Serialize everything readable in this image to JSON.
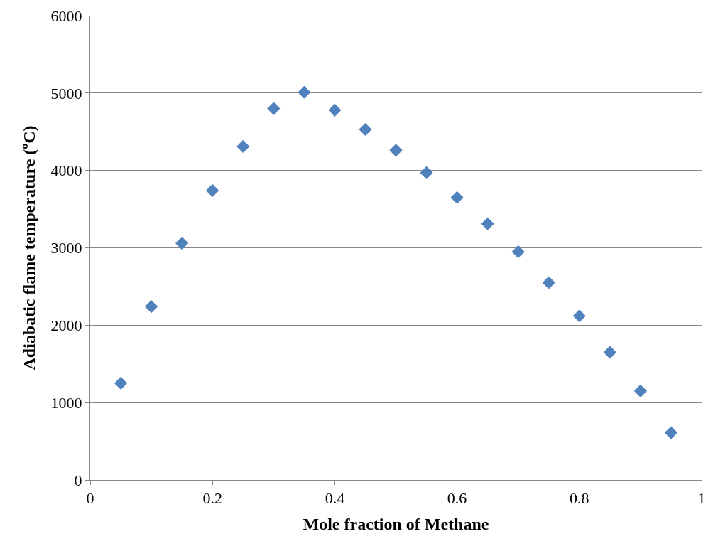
{
  "chart_data": {
    "type": "scatter",
    "xlabel": "Mole fraction of Methane",
    "ylabel": "Adiabatic flame temperature (ºC)",
    "x": [
      0.05,
      0.1,
      0.15,
      0.2,
      0.25,
      0.3,
      0.35,
      0.4,
      0.45,
      0.5,
      0.55,
      0.6,
      0.65,
      0.7,
      0.75,
      0.8,
      0.85,
      0.9,
      0.95
    ],
    "series": [
      {
        "color": "#4f81bd",
        "values": [
          1250,
          2240,
          3060,
          3740,
          4310,
          4800,
          5010,
          4780,
          4530,
          4260,
          3970,
          3650,
          3310,
          2950,
          2550,
          2120,
          1650,
          1150,
          610
        ]
      }
    ],
    "xlim": [
      0,
      1
    ],
    "xticks": [
      0,
      0.2,
      0.4,
      0.6,
      0.8,
      1
    ],
    "ylim": [
      0,
      6000
    ],
    "yticks": [
      0,
      1000,
      2000,
      3000,
      4000,
      5000,
      6000
    ],
    "grid": "y",
    "marker": "diamond"
  }
}
